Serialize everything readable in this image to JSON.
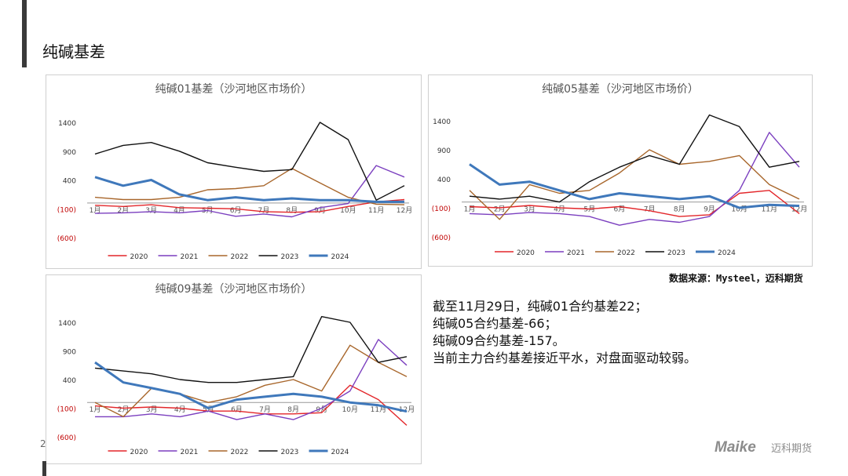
{
  "page": {
    "title": "纯碱基差",
    "page_number": "2"
  },
  "source": "数据来源：Mysteel，迈科期货",
  "commentary": [
    "截至11月29日，纯碱01合约基差22；",
    "纯碱05合约基差-66；",
    "纯碱09合约基差-157。",
    "当前主力合约基差接近平水，对盘面驱动较弱。"
  ],
  "logo": {
    "brand": "Maike",
    "name_cn": "迈科期货"
  },
  "colors": {
    "2020": "#e3262a",
    "2021": "#7b3fbf",
    "2022": "#a8662b",
    "2023": "#111111",
    "2024": "#3f78bb",
    "neg_tick": "#c00000"
  },
  "chart_data": [
    {
      "type": "line",
      "title": "纯碱01基差（沙河地区市场价）",
      "y_ticks": [
        "1400",
        "900",
        "400",
        "(100)",
        "(600)"
      ],
      "ylim": [
        -600,
        1400
      ],
      "x_ticks": [
        "1月",
        "2月",
        "3月",
        "4月",
        "5月",
        "6月",
        "7月",
        "8月",
        "9月",
        "10月",
        "11月",
        "12月"
      ],
      "legend": [
        "2020",
        "2021",
        "2022",
        "2023",
        "2024"
      ],
      "legend_position": "bottom",
      "grid": false,
      "series": [
        {
          "name": "2020",
          "values": [
            -40,
            -60,
            -30,
            -80,
            -90,
            -100,
            -150,
            -160,
            -150,
            -60,
            20,
            60
          ]
        },
        {
          "name": "2021",
          "values": [
            -180,
            -170,
            -150,
            -170,
            -130,
            -230,
            -190,
            -240,
            -80,
            -10,
            650,
            450
          ]
        },
        {
          "name": "2022",
          "values": [
            100,
            60,
            60,
            100,
            230,
            250,
            300,
            600,
            350,
            100,
            -20,
            -30
          ]
        },
        {
          "name": "2023",
          "values": [
            850,
            1000,
            1050,
            900,
            700,
            620,
            550,
            580,
            1400,
            1100,
            50,
            300
          ]
        },
        {
          "name": "2024",
          "values": [
            450,
            300,
            400,
            150,
            50,
            100,
            50,
            80,
            50,
            50,
            20,
            22
          ]
        }
      ]
    },
    {
      "type": "line",
      "title": "纯碱05基差（沙河地区市场价）",
      "y_ticks": [
        "1400",
        "900",
        "400",
        "(100)",
        "(600)"
      ],
      "ylim": [
        -600,
        1400
      ],
      "x_ticks": [
        "1月",
        "2月",
        "3月",
        "4月",
        "5月",
        "6月",
        "7月",
        "8月",
        "9月",
        "10月",
        "11月",
        "12月"
      ],
      "legend": [
        "2020",
        "2021",
        "2022",
        "2023",
        "2024"
      ],
      "legend_position": "bottom",
      "grid": false,
      "series": [
        {
          "name": "2020",
          "values": [
            -80,
            -100,
            -60,
            -100,
            -120,
            -80,
            -150,
            -250,
            -220,
            150,
            200,
            -200
          ]
        },
        {
          "name": "2021",
          "values": [
            -200,
            -220,
            -180,
            -200,
            -250,
            -400,
            -300,
            -350,
            -250,
            200,
            1200,
            600
          ]
        },
        {
          "name": "2022",
          "values": [
            200,
            -300,
            300,
            150,
            200,
            500,
            900,
            650,
            700,
            800,
            300,
            50
          ]
        },
        {
          "name": "2023",
          "values": [
            100,
            50,
            100,
            0,
            350,
            600,
            800,
            650,
            1500,
            1300,
            600,
            700
          ]
        },
        {
          "name": "2024",
          "values": [
            650,
            300,
            350,
            200,
            50,
            150,
            100,
            50,
            100,
            -100,
            -50,
            -66
          ]
        }
      ]
    },
    {
      "type": "line",
      "title": "纯碱09基差（沙河地区市场价）",
      "y_ticks": [
        "1400",
        "900",
        "400",
        "(100)",
        "(600)"
      ],
      "ylim": [
        -600,
        1400
      ],
      "x_ticks": [
        "1月",
        "2月",
        "3月",
        "4月",
        "5月",
        "6月",
        "7月",
        "8月",
        "9月",
        "10月",
        "11月",
        "12月"
      ],
      "legend": [
        "2020",
        "2021",
        "2022",
        "2023",
        "2024"
      ],
      "legend_position": "bottom",
      "grid": false,
      "series": [
        {
          "name": "2020",
          "values": [
            -60,
            -100,
            -80,
            -100,
            -150,
            -150,
            -200,
            -200,
            -180,
            300,
            50,
            -400
          ]
        },
        {
          "name": "2021",
          "values": [
            -250,
            -250,
            -200,
            -250,
            -150,
            -300,
            -200,
            -300,
            -100,
            200,
            1100,
            650
          ]
        },
        {
          "name": "2022",
          "values": [
            0,
            -250,
            250,
            150,
            0,
            100,
            300,
            400,
            200,
            1000,
            700,
            450
          ]
        },
        {
          "name": "2023",
          "values": [
            600,
            550,
            500,
            400,
            350,
            350,
            400,
            450,
            1500,
            1400,
            700,
            800
          ]
        },
        {
          "name": "2024",
          "values": [
            700,
            350,
            250,
            150,
            -100,
            50,
            100,
            150,
            100,
            0,
            -50,
            -157
          ]
        }
      ]
    }
  ]
}
